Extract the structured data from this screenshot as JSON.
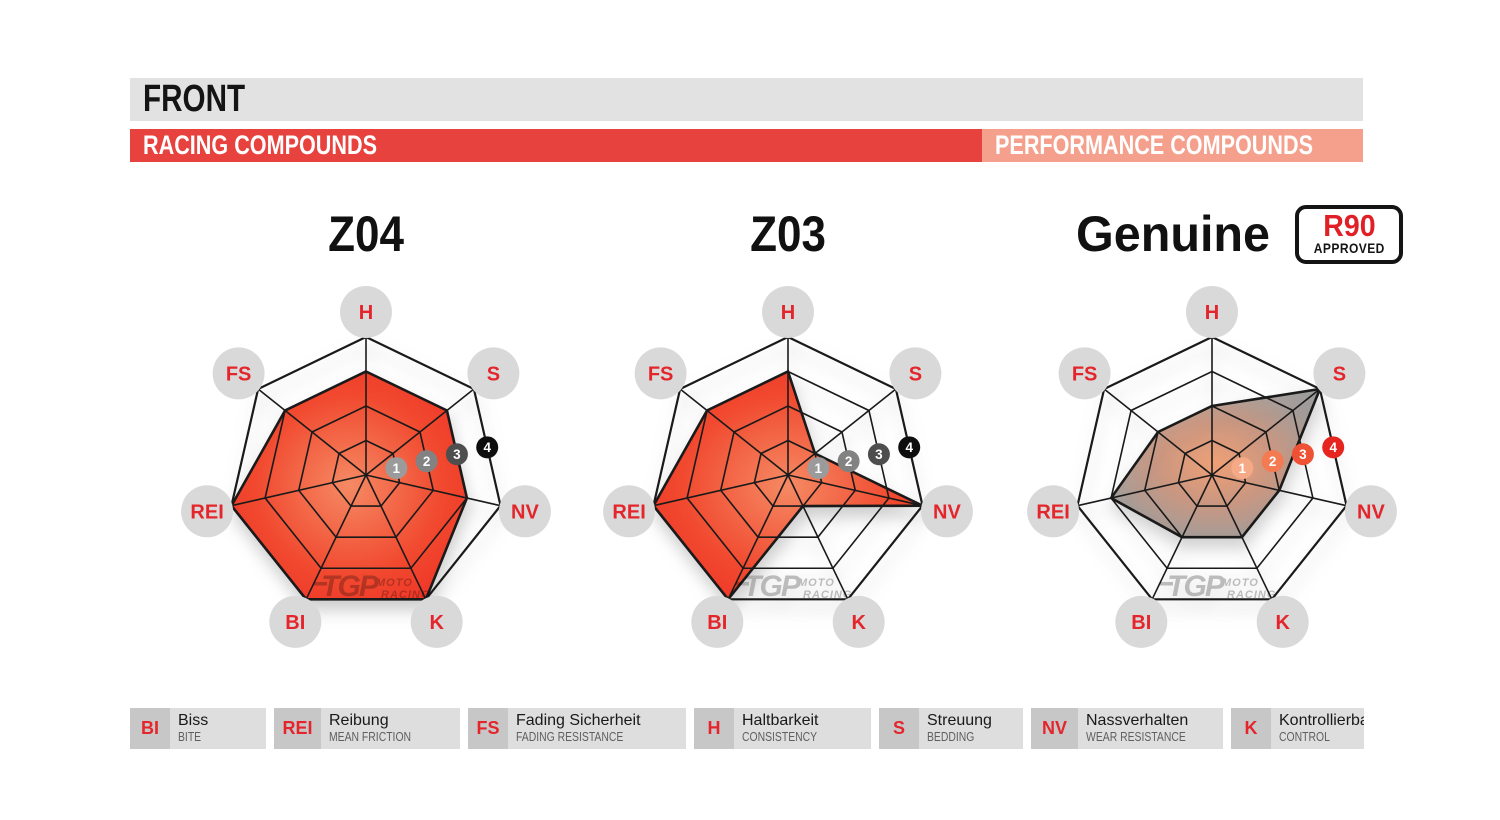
{
  "header": {
    "title": "FRONT"
  },
  "bands": {
    "racing": {
      "label": "RACING COMPOUNDS",
      "color": "#e8423e"
    },
    "performance": {
      "label": "PERFORMANCE COMPOUNDS",
      "color": "#f4a08d"
    }
  },
  "charts": [
    {
      "title": "Z04",
      "group": "racing"
    },
    {
      "title": "Z03",
      "group": "racing"
    },
    {
      "title": "Genuine",
      "group": "performance",
      "badge": {
        "line1": "R90",
        "line2": "APPROVED"
      }
    }
  ],
  "chart_data": {
    "type": "radar",
    "axes": [
      "H",
      "S",
      "NV",
      "K",
      "BI",
      "REI",
      "FS"
    ],
    "scale": {
      "min": 0,
      "max": 4,
      "rings": [
        1,
        2,
        3,
        4
      ]
    },
    "series": [
      {
        "name": "Z04",
        "group": "racing",
        "values": {
          "H": 3,
          "S": 3,
          "NV": 3,
          "K": 4,
          "BI": 4,
          "REI": 4,
          "FS": 3
        }
      },
      {
        "name": "Z03",
        "group": "racing",
        "values": {
          "H": 3,
          "S": 1,
          "NV": 4,
          "K": 1,
          "BI": 4,
          "REI": 4,
          "FS": 3
        }
      },
      {
        "name": "Genuine",
        "group": "performance",
        "values": {
          "H": 2,
          "S": 4,
          "NV": 2,
          "K": 2,
          "BI": 2,
          "REI": 3,
          "FS": 2
        }
      }
    ],
    "legend_position": "bottom",
    "grid": true
  },
  "palettes": {
    "racing": {
      "marker_colors": [
        "#9b9b9b",
        "#828282",
        "#4e4e4e",
        "#0e0e0e"
      ],
      "fill_stops": [
        {
          "o": "0%",
          "c": "#f58a64"
        },
        {
          "o": "55%",
          "c": "#f1492f"
        },
        {
          "o": "100%",
          "c": "#ee2a22"
        }
      ],
      "fill_opacity": 1
    },
    "performance": {
      "marker_colors": [
        "#f5a987",
        "#f37a51",
        "#ee5133",
        "#e6251f"
      ],
      "fill_stops": [
        {
          "o": "0%",
          "c": "#f09b6e"
        },
        {
          "o": "38%",
          "c": "#c99179"
        },
        {
          "o": "72%",
          "c": "#a09793"
        },
        {
          "o": "100%",
          "c": "#909497"
        }
      ],
      "fill_opacity": 0.92
    }
  },
  "axis_style": {
    "circle_color": "#d9d9d9",
    "text_color": "#e4262c",
    "grid_color": "#1a1a1a"
  },
  "watermark": {
    "brand": "TGP",
    "line1": "MOTO",
    "line2": "RACING",
    "color": "#8a8a8a"
  },
  "legend": {
    "items": [
      {
        "abbr": "BI",
        "de": "Biss",
        "en": "BITE"
      },
      {
        "abbr": "REI",
        "de": "Reibung",
        "en": "MEAN FRICTION"
      },
      {
        "abbr": "FS",
        "de": "Fading Sicherheit",
        "en": "FADING RESISTANCE"
      },
      {
        "abbr": "H",
        "de": "Haltbarkeit",
        "en": "CONSISTENCY"
      },
      {
        "abbr": "S",
        "de": "Streuung",
        "en": "BEDDING"
      },
      {
        "abbr": "NV",
        "de": "Nassverhalten",
        "en": "WEAR RESISTANCE"
      },
      {
        "abbr": "K",
        "de": "Kontrollierbarkeit",
        "en": "CONTROL"
      }
    ]
  }
}
